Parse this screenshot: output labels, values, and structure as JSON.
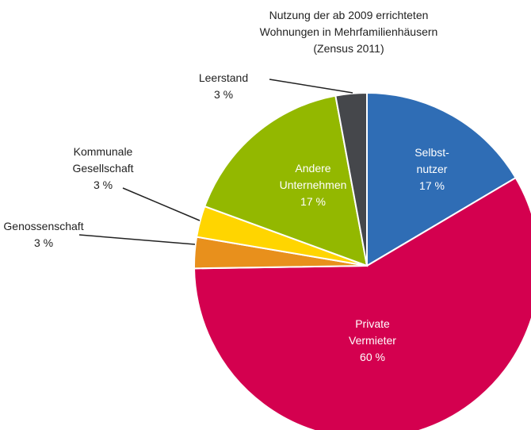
{
  "chart_data": {
    "type": "pie",
    "title": "Nutzung der ab 2009 errichteten\nWohnungen in Mehrfamilienhäusern\n(Zensus 2011)",
    "categories": [
      "Selbst-\nnutzer",
      "Private\nVermieter",
      "Genossenschaft",
      "Kommunale\nGesellschaft",
      "Andere\nUnternehmen",
      "Leerstand"
    ],
    "values": [
      17,
      60,
      3,
      3,
      17,
      3
    ],
    "value_labels": [
      "17 %",
      "60 %",
      "3 %",
      "3 %",
      "17 %",
      "3 %"
    ],
    "colors": [
      "#2f6db5",
      "#d4004f",
      "#e8901c",
      "#ffd500",
      "#93b800",
      "#45474b"
    ]
  }
}
